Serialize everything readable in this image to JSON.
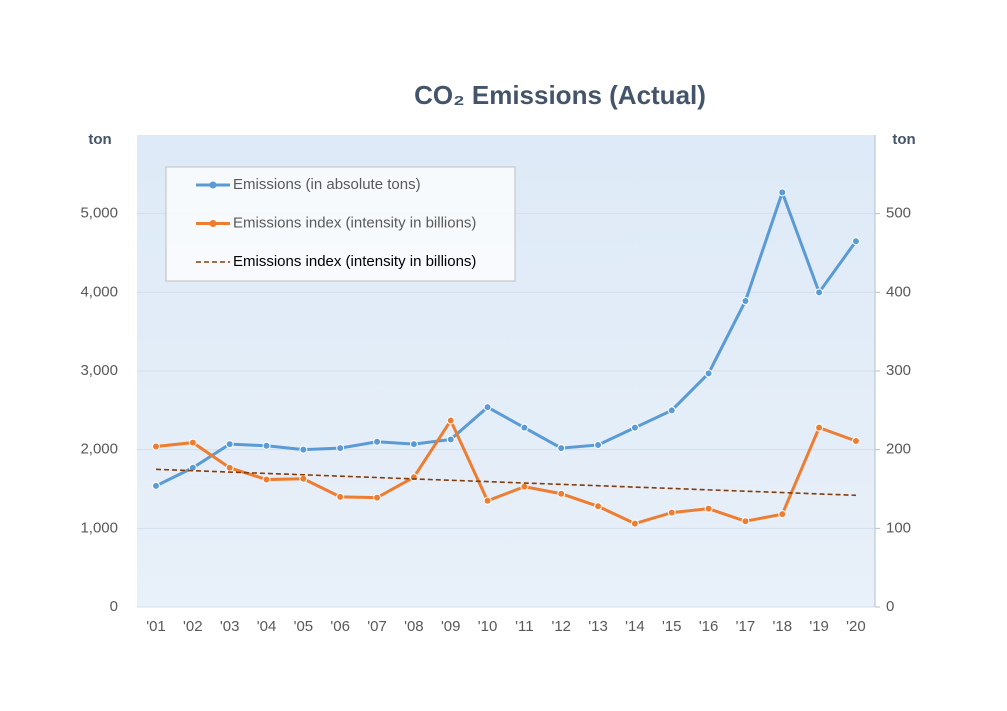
{
  "chart_data": {
    "type": "line",
    "title": "CO₂ Emissions (Actual)",
    "ylabel": "ton",
    "y2label": "ton",
    "categories": [
      "'01",
      "'02",
      "'03",
      "'04",
      "'05",
      "'06",
      "'07",
      "'08",
      "'09",
      "'10",
      "'11",
      "'12",
      "'13",
      "'14",
      "'15",
      "'16",
      "'17",
      "'18",
      "'19",
      "'20"
    ],
    "ylim": [
      0,
      6000
    ],
    "yticks": [
      0,
      {
        "value": 1000,
        "label": "1,000"
      },
      {
        "value": 2000,
        "label": "2,000"
      },
      {
        "value": 3000,
        "label": "3,000"
      },
      {
        "value": 4000,
        "label": "4,000"
      },
      {
        "value": 5000,
        "label": "5,000"
      }
    ],
    "y2lim": [
      0,
      600
    ],
    "y2ticks": [
      0,
      100,
      200,
      300,
      400,
      500
    ],
    "grid": true,
    "legend": "upper left",
    "series": [
      {
        "name": "Emissions (in absolute tons)",
        "color": "#5b9bd5",
        "markers": true,
        "values": [
          1540,
          1770,
          2070,
          2050,
          2000,
          2020,
          2100,
          2070,
          2130,
          2540,
          2280,
          2020,
          2060,
          2280,
          2500,
          2970,
          3890,
          5270,
          4000,
          4650
        ]
      },
      {
        "name": "Emissions index (intensity in billions)",
        "color": "#ed7d31",
        "markers": true,
        "axis": "y2",
        "values": [
          204,
          209,
          177,
          162,
          163,
          140,
          139,
          165,
          237,
          135,
          153,
          144,
          128,
          106,
          120,
          125,
          109,
          118,
          228,
          211
        ]
      },
      {
        "name": "Emissions index (intensity in billions)",
        "color": "#843c0c",
        "dashed": true,
        "axis": "y2",
        "values": [
          175,
          173.3,
          171.5,
          169.8,
          168.1,
          166.3,
          164.6,
          162.8,
          161.1,
          159.4,
          157.6,
          155.9,
          154.2,
          152.4,
          150.7,
          148.9,
          147.2,
          145.5,
          143.7,
          142
        ]
      }
    ]
  }
}
